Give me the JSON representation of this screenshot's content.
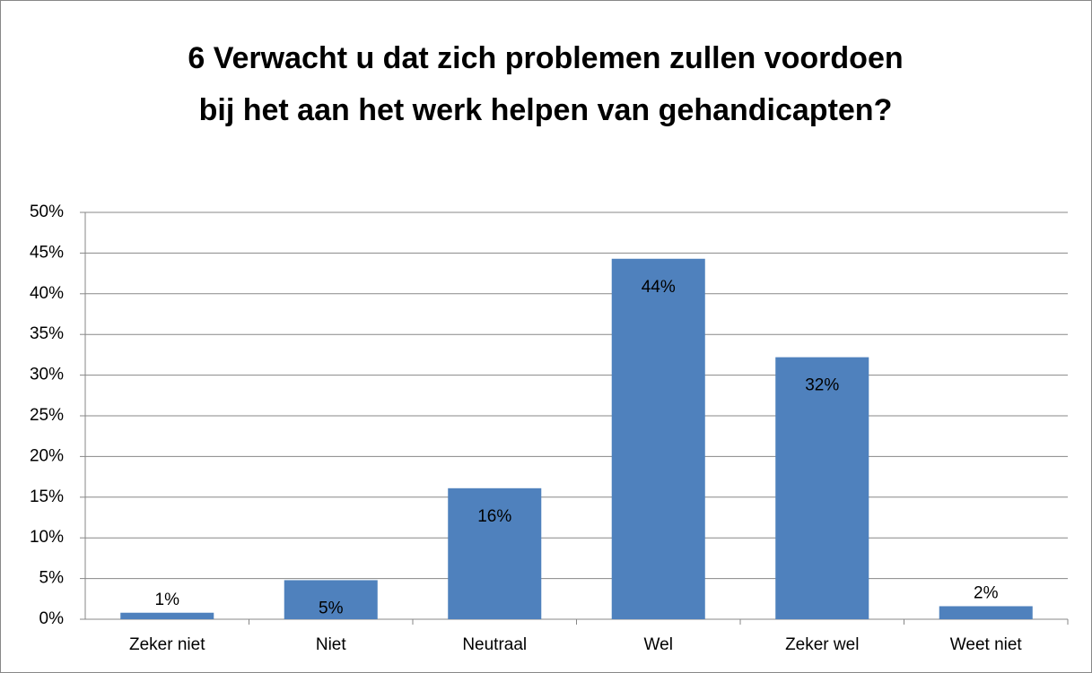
{
  "chart_data": {
    "type": "bar",
    "title": "6 Verwacht u dat zich problemen zullen voordoen bij het aan het werk helpen van gehandicapten?",
    "categories": [
      "Zeker niet",
      "Niet",
      "Neutraal",
      "Wel",
      "Zeker wel",
      "Weet niet"
    ],
    "values": [
      0.8,
      4.8,
      16.1,
      44.3,
      32.2,
      1.6
    ],
    "value_labels": [
      "1%",
      "5%",
      "16%",
      "44%",
      "32%",
      "2%"
    ],
    "color": "#4f81bd",
    "ylim": [
      0,
      50
    ],
    "yticks": [
      {
        "value": 0,
        "label": "0%"
      },
      {
        "value": 5,
        "label": "5%"
      },
      {
        "value": 10,
        "label": "10%"
      },
      {
        "value": 15,
        "label": "15%"
      },
      {
        "value": 20,
        "label": "20%"
      },
      {
        "value": 25,
        "label": "25%"
      },
      {
        "value": 30,
        "label": "30%"
      },
      {
        "value": 35,
        "label": "35%"
      },
      {
        "value": 40,
        "label": "40%"
      },
      {
        "value": 45,
        "label": "45%"
      },
      {
        "value": 50,
        "label": "50%"
      }
    ],
    "grid": true
  }
}
